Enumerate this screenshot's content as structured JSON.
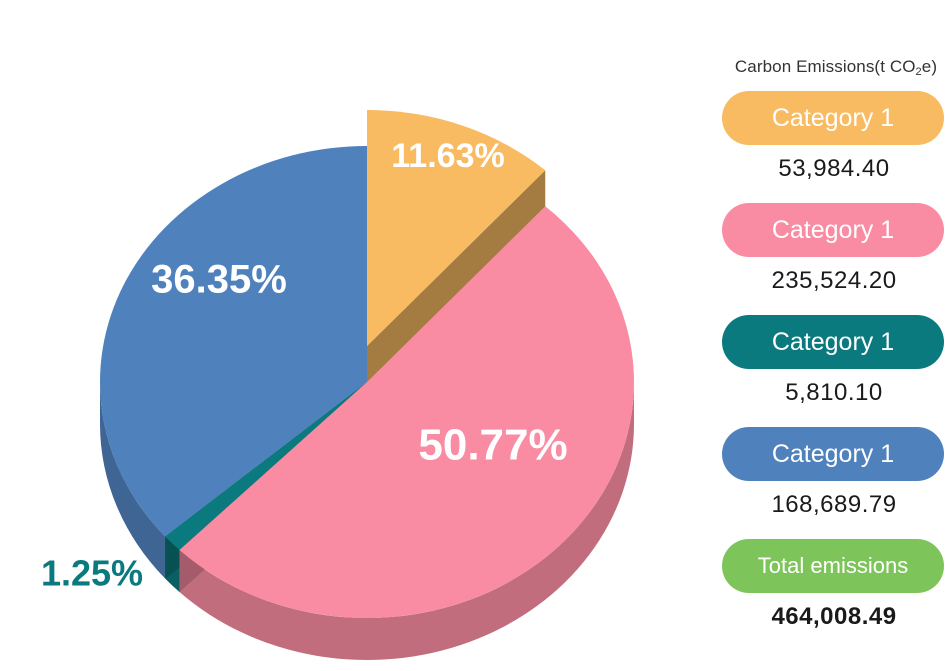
{
  "legend": {
    "title_prefix": "Carbon Emissions(t CO",
    "title_sub": "2",
    "title_suffix": "e)",
    "items": [
      {
        "label": "Category 1",
        "value": "53,984.40",
        "color": "#f8bb61"
      },
      {
        "label": "Category 1",
        "value": "235,524.20",
        "color": "#f98ca2"
      },
      {
        "label": "Category 1",
        "value": "5,810.10",
        "color": "#0b7a7e"
      },
      {
        "label": "Category 1",
        "value": "168,689.79",
        "color": "#4f81bd"
      }
    ],
    "total": {
      "label": "Total emissions",
      "value": "464,008.49",
      "color": "#7dc55b"
    }
  },
  "chart_data": {
    "type": "pie",
    "style": "3d-exploded",
    "unit": "t CO2e",
    "categories": [
      "Category 1",
      "Category 1",
      "Category 1",
      "Category 1"
    ],
    "values": [
      53984.4,
      235524.2,
      5810.1,
      168689.79
    ],
    "percent_labels": [
      "11.63%",
      "50.77%",
      "1.25%",
      "36.35%"
    ],
    "colors": [
      "#f8bb61",
      "#f98ca2",
      "#0b7a7e",
      "#4f81bd"
    ],
    "total": 464008.49
  }
}
